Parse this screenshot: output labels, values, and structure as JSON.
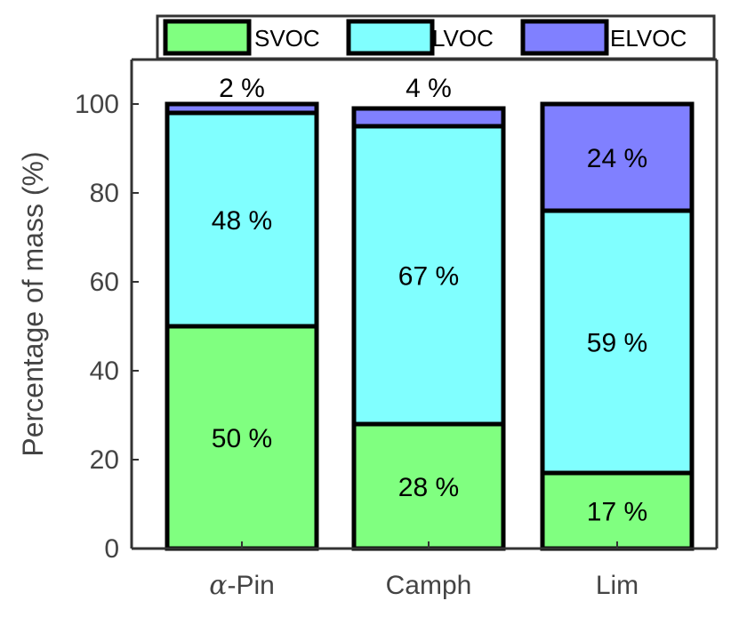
{
  "chart_data": {
    "type": "bar",
    "stacked": true,
    "categories": [
      "α-Pin",
      "Camph",
      "Lim"
    ],
    "category_labels": [
      {
        "prefix": "α",
        "rest": "-Pin"
      },
      {
        "prefix": "",
        "rest": "Camph"
      },
      {
        "prefix": "",
        "rest": "Lim"
      }
    ],
    "series": [
      {
        "name": "SVOC",
        "color": "#80ff80",
        "values": [
          50,
          28,
          17
        ],
        "labels": [
          "50 %",
          "28 %",
          "17 %"
        ]
      },
      {
        "name": "LVOC",
        "color": "#80ffff",
        "values": [
          48,
          67,
          59
        ],
        "labels": [
          "48 %",
          "67 %",
          "59 %"
        ]
      },
      {
        "name": "ELVOC",
        "color": "#8080ff",
        "values": [
          2,
          4,
          24
        ],
        "labels": [
          "2 %",
          "4 %",
          "24 %"
        ]
      }
    ],
    "ylabel": "Percentage of mass (%)",
    "ylim": [
      0,
      110
    ],
    "yticks": [
      "0",
      "20",
      "40",
      "60",
      "80",
      "100"
    ],
    "legend_position": "top",
    "grid": false
  }
}
